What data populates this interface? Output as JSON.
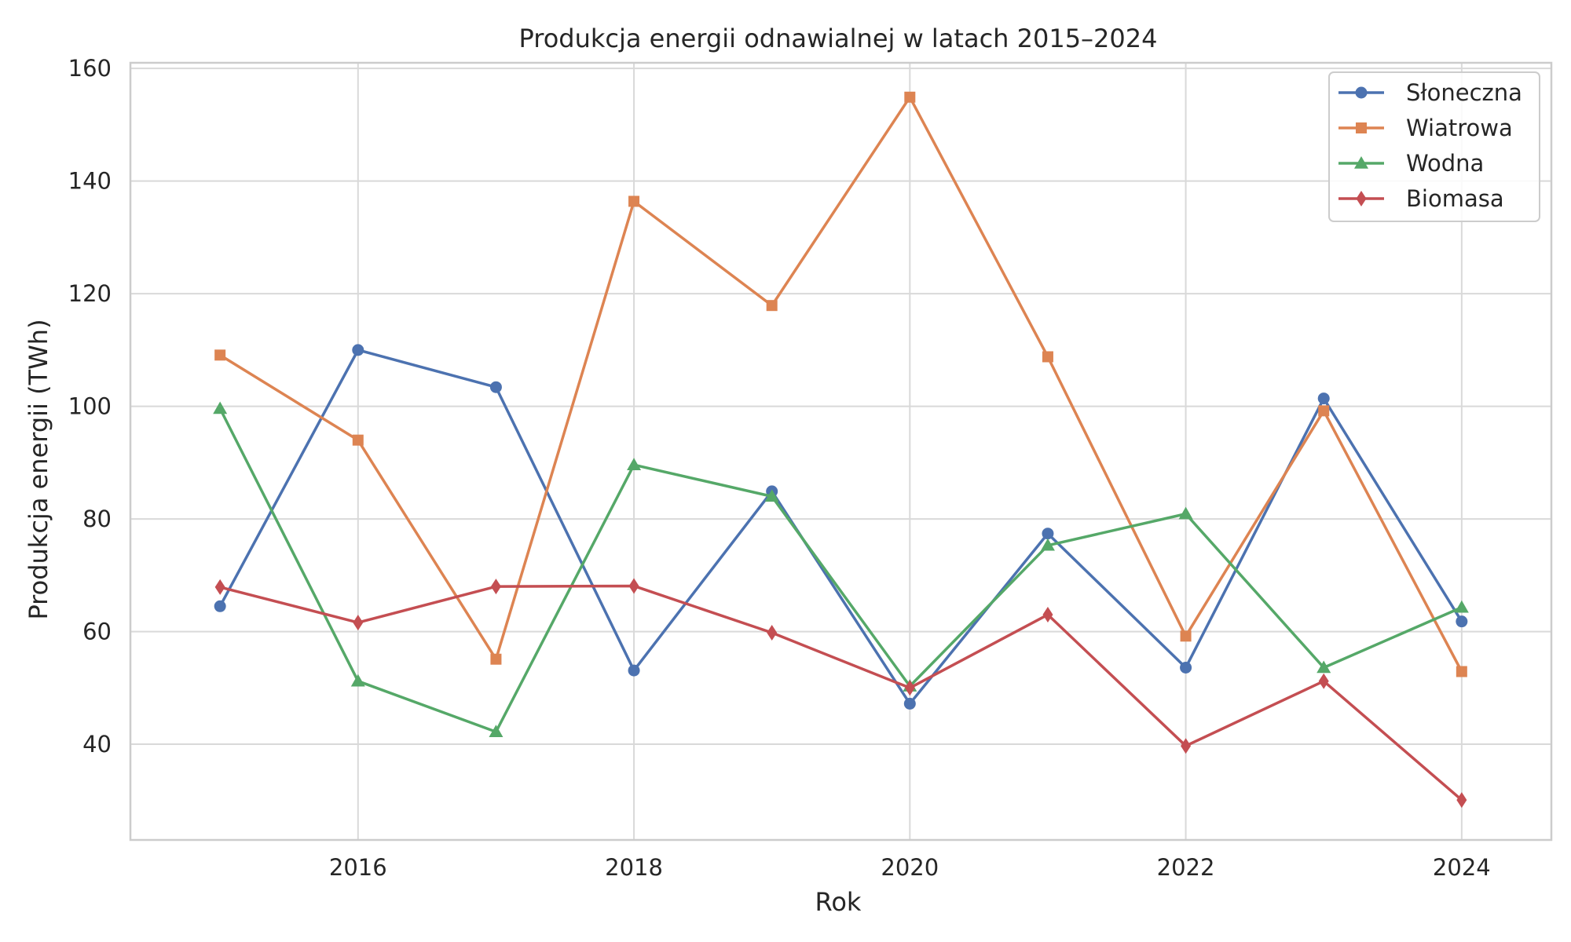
{
  "chart_data": {
    "type": "line",
    "title": "Produkcja energii odnawialnej w latach 2015–2024",
    "xlabel": "Rok",
    "ylabel": "Produkcja energii (TWh)",
    "x": [
      2015,
      2016,
      2017,
      2018,
      2019,
      2020,
      2021,
      2022,
      2023,
      2024
    ],
    "xlim": [
      2014.35,
      2024.65
    ],
    "ylim": [
      23.0,
      161.0
    ],
    "x_ticks": [
      2016,
      2018,
      2020,
      2022,
      2024
    ],
    "y_ticks": [
      40,
      60,
      80,
      100,
      120,
      140,
      160
    ],
    "grid": true,
    "legend_position": "top-right",
    "series": [
      {
        "name": "Słoneczna",
        "color": "#4c72b0",
        "marker": "circle",
        "values": [
          64.5,
          110.0,
          103.4,
          53.1,
          84.9,
          47.2,
          77.4,
          53.6,
          101.4,
          61.8
        ]
      },
      {
        "name": "Wiatrowa",
        "color": "#dd8452",
        "marker": "square",
        "values": [
          109.1,
          94.0,
          55.1,
          136.4,
          117.9,
          154.9,
          108.8,
          59.2,
          99.2,
          52.9
        ]
      },
      {
        "name": "Wodna",
        "color": "#55a868",
        "marker": "triangle",
        "values": [
          99.6,
          51.2,
          42.2,
          89.6,
          84.0,
          50.3,
          75.3,
          80.9,
          53.6,
          64.3
        ]
      },
      {
        "name": "Biomasa",
        "color": "#c44e52",
        "marker": "diamond",
        "values": [
          67.9,
          61.6,
          68.0,
          68.1,
          59.8,
          50.0,
          63.0,
          39.7,
          51.2,
          30.1
        ]
      }
    ]
  }
}
